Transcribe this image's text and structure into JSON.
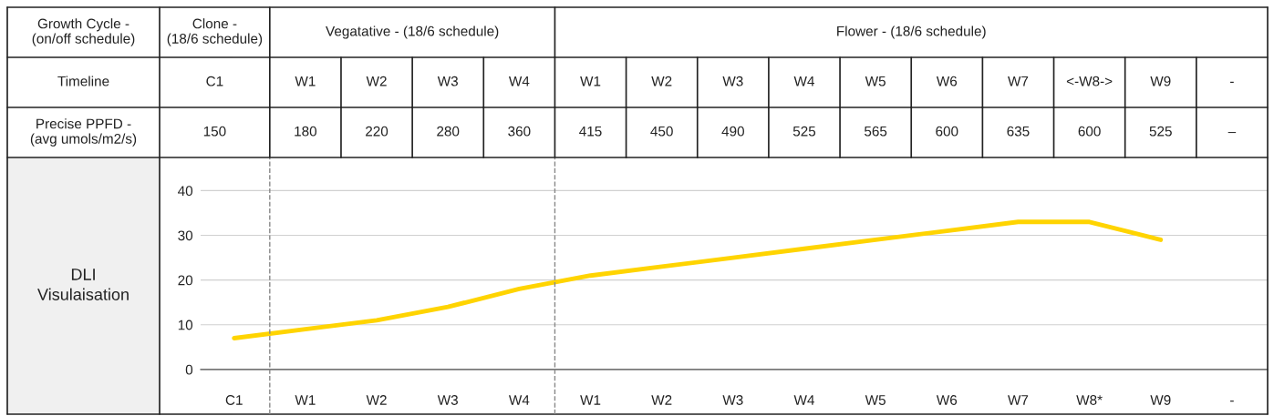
{
  "chart_data": {
    "type": "line",
    "categories": [
      "C1",
      "W1",
      "W2",
      "W3",
      "W4",
      "W1",
      "W2",
      "W3",
      "W4",
      "W5",
      "W6",
      "W7",
      "W8*",
      "W9",
      "-"
    ],
    "series": [
      {
        "color": "#ffd400",
        "values": [
          7,
          9,
          11,
          14,
          18,
          21,
          23,
          25,
          27,
          29,
          31,
          33,
          33,
          29,
          null
        ]
      }
    ],
    "ylabel": "DLI\nVisulaisation",
    "ylim": [
      -10,
      47
    ],
    "yticks": [
      0,
      10,
      20,
      30,
      40
    ],
    "grid": "y",
    "marker": "none",
    "line_style": "solid",
    "annotations": [
      "Growth Cycle -\n(on/off schedule)",
      "Clone -\n(18/6 schedule)",
      "Vegatative - (18/6 schedule)",
      "Flower - (18/6 schedule)",
      "Timeline",
      "C1",
      "W1",
      "W2",
      "W3",
      "W4",
      "W1",
      "W2",
      "W3",
      "W4",
      "W5",
      "W6",
      "W7",
      "<-W8->",
      "W9",
      "-",
      "Precise PPFD -\n(avg umols/m2/s)",
      "150",
      "180",
      "220",
      "280",
      "360",
      "415",
      "450",
      "490",
      "525",
      "565",
      "600",
      "635",
      "600",
      "525",
      "–"
    ]
  }
}
